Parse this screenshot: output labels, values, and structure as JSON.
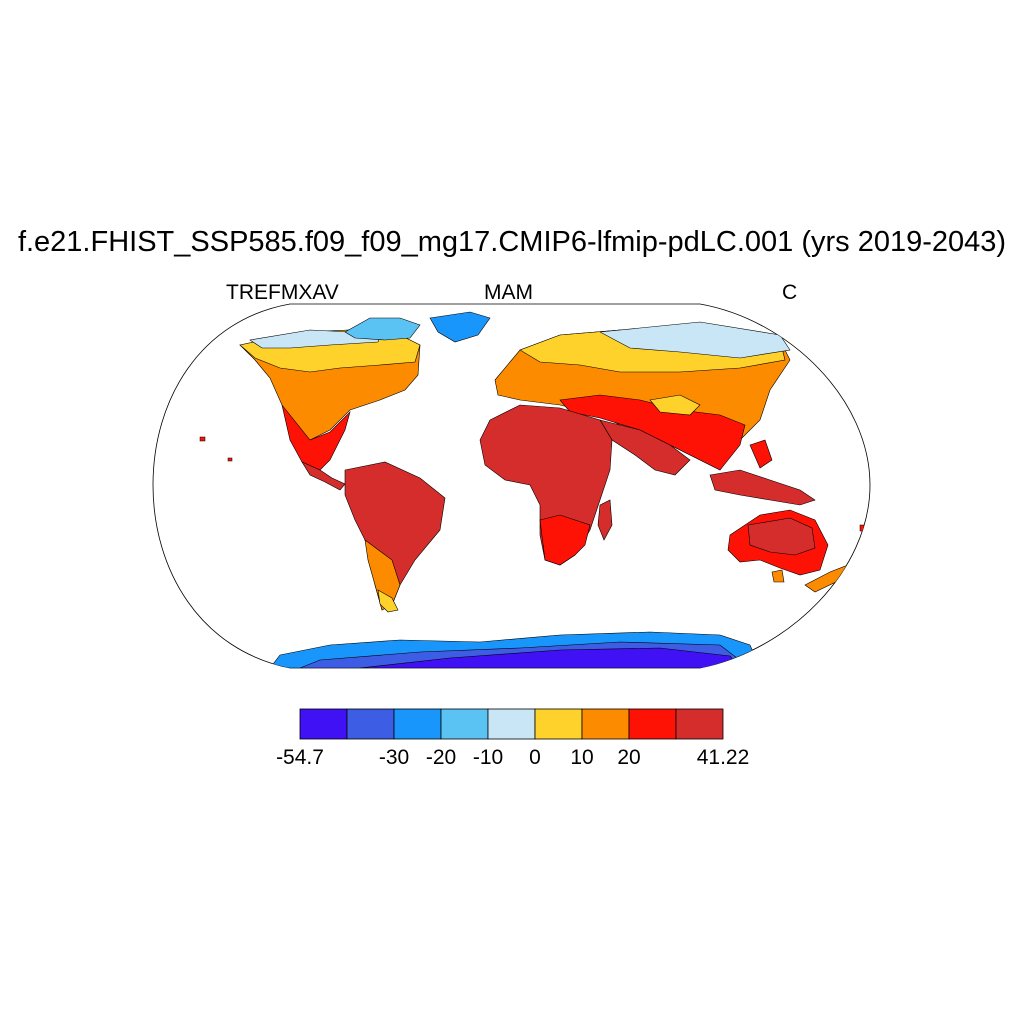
{
  "title": "f.e21.FHIST_SSP585.f09_f09_mg17.CMIP6-lfmip-pdLC.001 (yrs 2019-2043)",
  "left_label": "TREFMXAV",
  "center_label": "MAM",
  "right_label": "C",
  "colorbar": {
    "colors": [
      "#4011f5",
      "#3d5de4",
      "#1996fb",
      "#5bc3f4",
      "#c9e6f7",
      "#fed22b",
      "#fd8b00",
      "#fe1206",
      "#d52c2c"
    ],
    "labels": [
      "-54.7",
      "-30",
      "-20",
      "-10",
      "0",
      "10",
      "20",
      "41.22"
    ]
  }
}
